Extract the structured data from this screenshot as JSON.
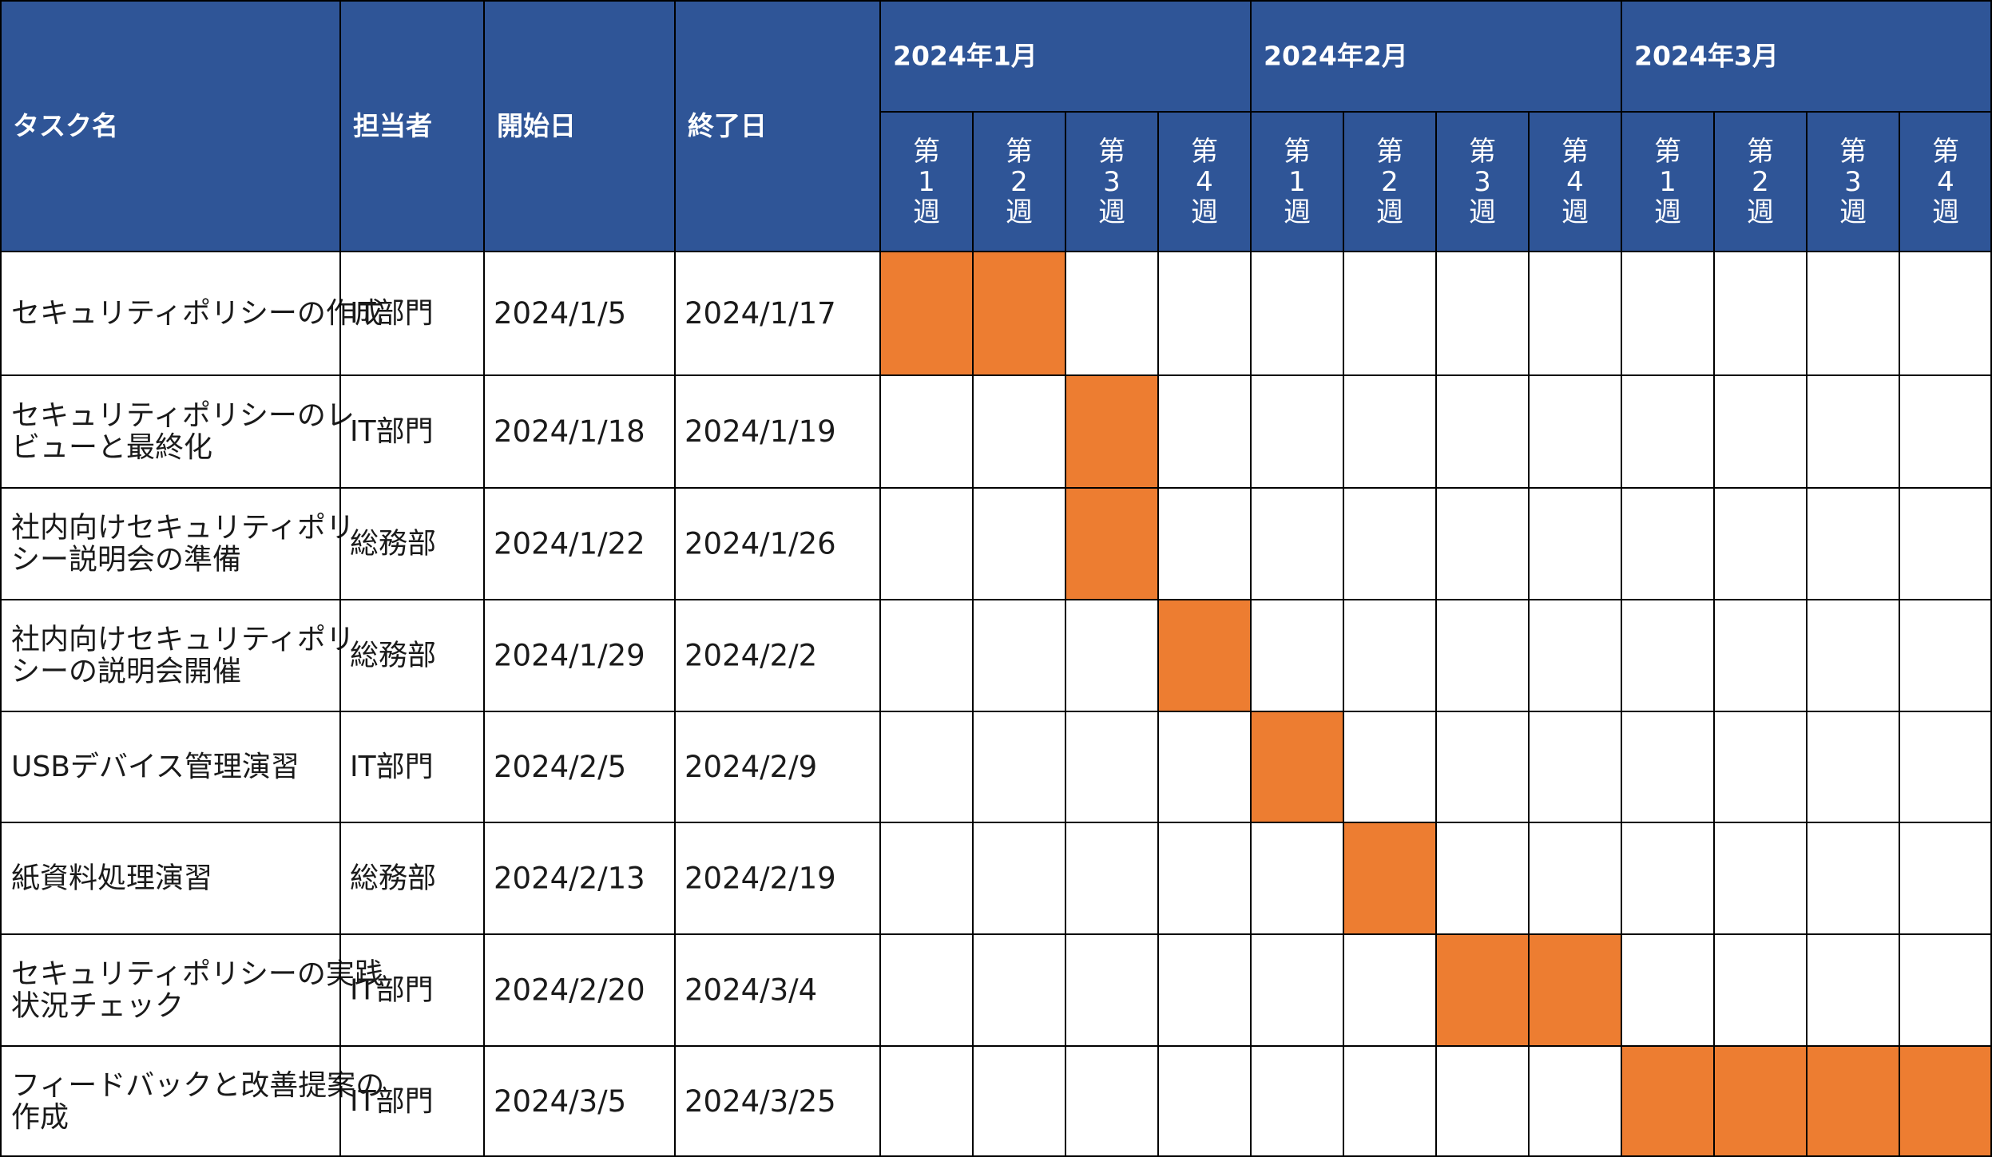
{
  "columns": {
    "task": "タスク名",
    "owner": "担当者",
    "start": "開始日",
    "end": "終了日"
  },
  "months": [
    "2024年1月",
    "2024年2月",
    "2024年3月"
  ],
  "week_label": {
    "prefix": "第",
    "suffix": "週"
  },
  "weeks": [
    {
      "month": 0,
      "num": "1"
    },
    {
      "month": 0,
      "num": "2"
    },
    {
      "month": 0,
      "num": "3"
    },
    {
      "month": 0,
      "num": "4"
    },
    {
      "month": 1,
      "num": "1"
    },
    {
      "month": 1,
      "num": "2"
    },
    {
      "month": 1,
      "num": "3"
    },
    {
      "month": 1,
      "num": "4"
    },
    {
      "month": 2,
      "num": "1"
    },
    {
      "month": 2,
      "num": "2"
    },
    {
      "month": 2,
      "num": "3"
    },
    {
      "month": 2,
      "num": "4"
    }
  ],
  "colors": {
    "header": "#2F5597",
    "bar": "#ED7D31",
    "grid": "#000000",
    "cell": "#FFFFFF"
  },
  "chart_data": {
    "type": "table",
    "rows": [
      {
        "task": [
          "セキュリティポリシーの作成"
        ],
        "owner": "IT部門",
        "start": "2024/1/5",
        "end": "2024/1/17",
        "weeks": [
          0,
          1
        ]
      },
      {
        "task": [
          "セキュリティポリシーのレ",
          "ビューと最終化"
        ],
        "owner": "IT部門",
        "start": "2024/1/18",
        "end": "2024/1/19",
        "weeks": [
          2
        ]
      },
      {
        "task": [
          "社内向けセキュリティポリ",
          "シー説明会の準備"
        ],
        "owner": "総務部",
        "start": "2024/1/22",
        "end": "2024/1/26",
        "weeks": [
          2
        ]
      },
      {
        "task": [
          "社内向けセキュリティポリ",
          "シーの説明会開催"
        ],
        "owner": "総務部",
        "start": "2024/1/29",
        "end": "2024/2/2",
        "weeks": [
          3
        ]
      },
      {
        "task": [
          "USBデバイス管理演習"
        ],
        "owner": "IT部門",
        "start": "2024/2/5",
        "end": "2024/2/9",
        "weeks": [
          4
        ]
      },
      {
        "task": [
          "紙資料処理演習"
        ],
        "owner": "総務部",
        "start": "2024/2/13",
        "end": "2024/2/19",
        "weeks": [
          5
        ]
      },
      {
        "task": [
          "セキュリティポリシーの実践",
          "状況チェック"
        ],
        "owner": "IT部門",
        "start": "2024/2/20",
        "end": "2024/3/4",
        "weeks": [
          6,
          7
        ]
      },
      {
        "task": [
          "フィードバックと改善提案の",
          "作成"
        ],
        "owner": "IT部門",
        "start": "2024/3/5",
        "end": "2024/3/25",
        "weeks": [
          8,
          9,
          10,
          11
        ]
      }
    ]
  }
}
